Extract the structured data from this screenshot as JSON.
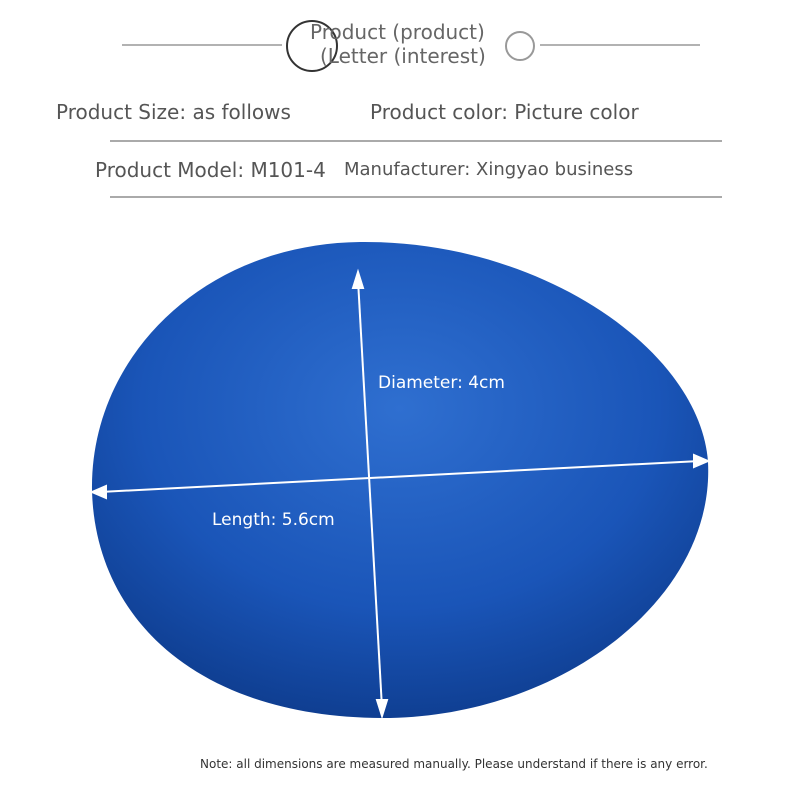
{
  "header": {
    "title_line1": "Product (product)",
    "title_line2": "(Letter (interest)"
  },
  "info": {
    "size": "Product Size: as follows",
    "color": "Product color: Picture color",
    "model": "Product Model: M101-4",
    "manufacturer": "Manufacturer: Xingyao business"
  },
  "image": {
    "diameter": "Diameter: 4cm",
    "length": "Length: 5.6cm"
  },
  "note": "Note: all dimensions are measured manually. Please understand if there is any error."
}
